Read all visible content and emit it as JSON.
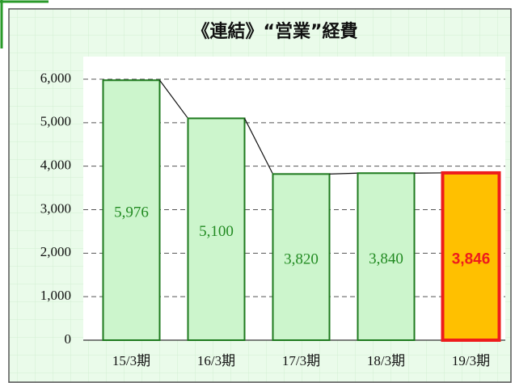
{
  "chart_data": {
    "type": "bar",
    "title": "《連結》“営業”経費",
    "categories": [
      "15/3期",
      "16/3期",
      "17/3期",
      "18/3期",
      "19/3期"
    ],
    "values": [
      5976,
      5100,
      3820,
      3840,
      3846
    ],
    "value_labels": [
      "5,976",
      "5,100",
      "3,820",
      "3,840",
      "3,846"
    ],
    "colors": [
      "#ccf5cc",
      "#ccf5cc",
      "#ccf5cc",
      "#ccf5cc",
      "#ffc000"
    ],
    "edge_colors": [
      "#1e7a1e",
      "#1e7a1e",
      "#1e7a1e",
      "#1e7a1e",
      "#ee1c1c"
    ],
    "label_colors": [
      "#228b22",
      "#228b22",
      "#228b22",
      "#228b22",
      "#ee1c1c"
    ],
    "label_bold": [
      false,
      false,
      false,
      false,
      true
    ],
    "ylim": [
      0,
      6000
    ],
    "yticks": [
      0,
      {
        "value": 1000,
        "label": "1,000"
      },
      {
        "value": 2000,
        "label": "2,000"
      },
      {
        "value": 3000,
        "label": "3,000"
      },
      {
        "value": 4000,
        "label": "4,000"
      },
      {
        "value": 5000,
        "label": "5,000"
      },
      {
        "value": 6000,
        "label": "6,000"
      }
    ],
    "grid": true
  }
}
